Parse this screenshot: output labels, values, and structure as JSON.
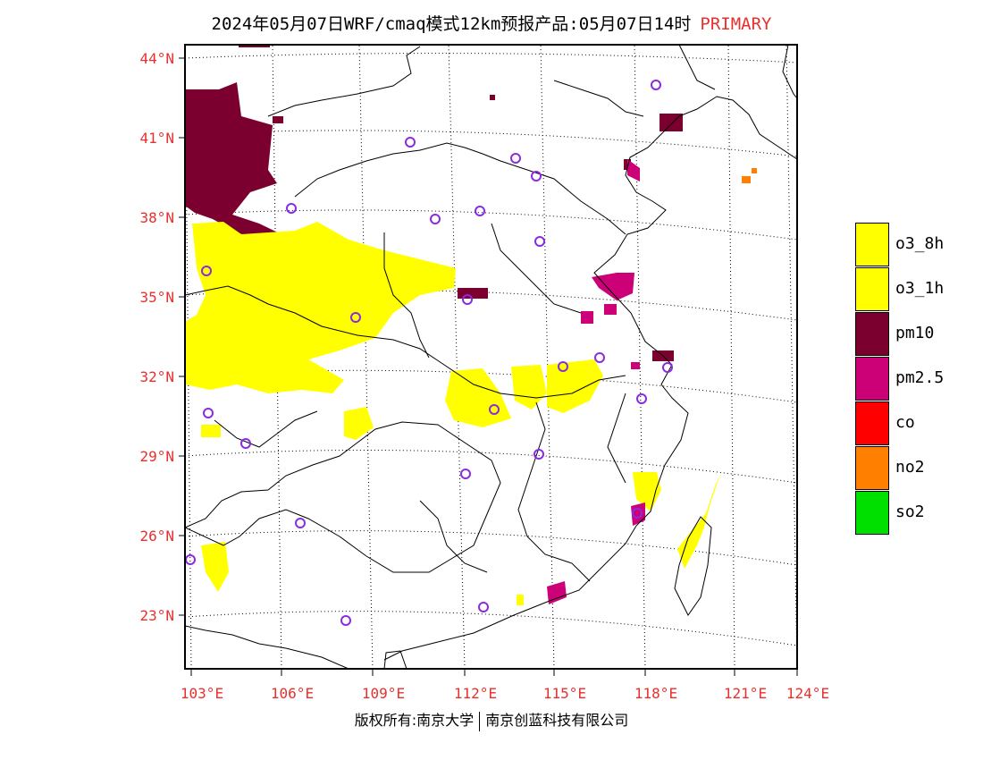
{
  "header": {
    "title": "2024年05月07日WRF/cmaq模式12km预报产品:05月07日14时",
    "tag": "PRIMARY"
  },
  "map": {
    "lat_labels": [
      "44°N",
      "41°N",
      "38°N",
      "35°N",
      "32°N",
      "29°N",
      "26°N",
      "23°N"
    ],
    "lon_labels": [
      "103°E",
      "106°E",
      "109°E",
      "112°E",
      "115°E",
      "118°E",
      "121°E",
      "124°E"
    ],
    "extent": {
      "lon": [
        102.8,
        124.0
      ],
      "lat": [
        21.8,
        44.5
      ]
    },
    "colors": {
      "frame": "#000000",
      "grid": "#000000",
      "axis_label": "#e8302c",
      "station_marker": "#8a2be2"
    }
  },
  "legend": {
    "items": [
      {
        "label": "o3_8h",
        "color": "#ffff00"
      },
      {
        "label": "o3_1h",
        "color": "#ffff00"
      },
      {
        "label": "pm10",
        "color": "#7b0030"
      },
      {
        "label": "pm2.5",
        "color": "#cc0077"
      },
      {
        "label": "co",
        "color": "#ff0000"
      },
      {
        "label": "no2",
        "color": "#ff8000"
      },
      {
        "label": "so2",
        "color": "#00e000"
      }
    ]
  },
  "footer": {
    "copyright_left": "版权所有:南京大学",
    "copyright_right": "南京创蓝科技有限公司"
  }
}
